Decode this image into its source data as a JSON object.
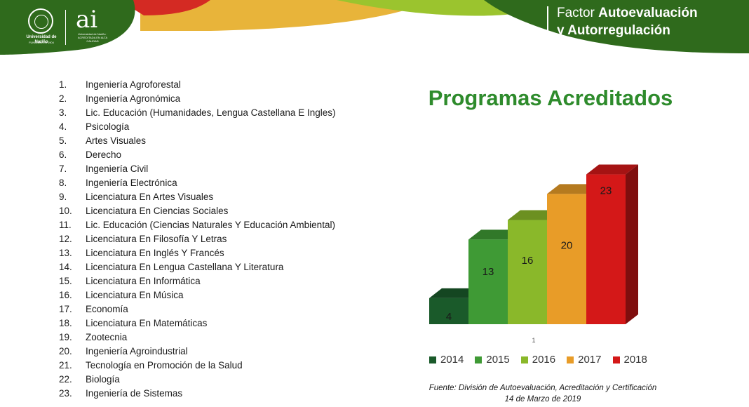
{
  "header": {
    "university_name": "Universidad de Nariño",
    "university_sub": "FUNDADA EN 1904",
    "ai_mark": "ai",
    "ai_sub": "Universidad de Nariño · ACREDITADA EN ALTA CALIDAD",
    "factor_prefix": "Factor",
    "factor_emphasis": "Autoevaluación",
    "factor_line2": "y Autorregulación",
    "colors": {
      "dark_green": "#2f6a1c",
      "red": "#d42a23",
      "yellow": "#e8b43a",
      "light_green": "#9bc42e"
    }
  },
  "programs": [
    {
      "num": "1.",
      "name": "Ingeniería Agroforestal"
    },
    {
      "num": "2.",
      "name": "Ingeniería Agronómica"
    },
    {
      "num": "3.",
      "name": "Lic. Educación (Humanidades, Lengua Castellana E Ingles)"
    },
    {
      "num": "4.",
      "name": "Psicología"
    },
    {
      "num": "5.",
      "name": "Artes Visuales"
    },
    {
      "num": "6.",
      "name": "Derecho"
    },
    {
      "num": "7.",
      "name": "Ingeniería Civil"
    },
    {
      "num": "8.",
      "name": "Ingeniería Electrónica"
    },
    {
      "num": "9.",
      "name": "Licenciatura En Artes Visuales"
    },
    {
      "num": "10.",
      "name": "Licenciatura En Ciencias Sociales"
    },
    {
      "num": "11.",
      "name": "Lic. Educación (Ciencias Naturales Y Educación Ambiental)"
    },
    {
      "num": "12.",
      "name": "Licenciatura En Filosofía Y Letras"
    },
    {
      "num": "13.",
      "name": "Licenciatura En Inglés Y Francés"
    },
    {
      "num": "14.",
      "name": "Licenciatura En Lengua Castellana Y Literatura"
    },
    {
      "num": "15.",
      "name": "Licenciatura En Informática"
    },
    {
      "num": "16.",
      "name": "Licenciatura En Música"
    },
    {
      "num": "17.",
      "name": "Economía"
    },
    {
      "num": "18.",
      "name": "Licenciatura En Matemáticas"
    },
    {
      "num": "19.",
      "name": "Zootecnia"
    },
    {
      "num": "20.",
      "name": "Ingeniería Agroindustrial"
    },
    {
      "num": "21.",
      "name": "Tecnología en Promoción de la Salud"
    },
    {
      "num": "22.",
      "name": "Biología"
    },
    {
      "num": "23.",
      "name": "Ingeniería de Sistemas"
    }
  ],
  "chart_data": {
    "type": "bar",
    "title": "Programas Acreditados",
    "categories": [
      "1"
    ],
    "series": [
      {
        "name": "2014",
        "values": [
          4
        ],
        "color": "#1a5a2a"
      },
      {
        "name": "2015",
        "values": [
          13
        ],
        "color": "#3f9a35"
      },
      {
        "name": "2016",
        "values": [
          16
        ],
        "color": "#8ab82a"
      },
      {
        "name": "2017",
        "values": [
          20
        ],
        "color": "#e89c28"
      },
      {
        "name": "2018",
        "values": [
          23
        ],
        "color": "#d41818"
      }
    ],
    "ylim": [
      0,
      25
    ],
    "grid": false,
    "legend": "bottom",
    "three_d": true
  },
  "source": {
    "line1": "Fuente: División de Autoevaluación, Acreditación y Certificación",
    "line2": "14 de Marzo de 2019"
  }
}
